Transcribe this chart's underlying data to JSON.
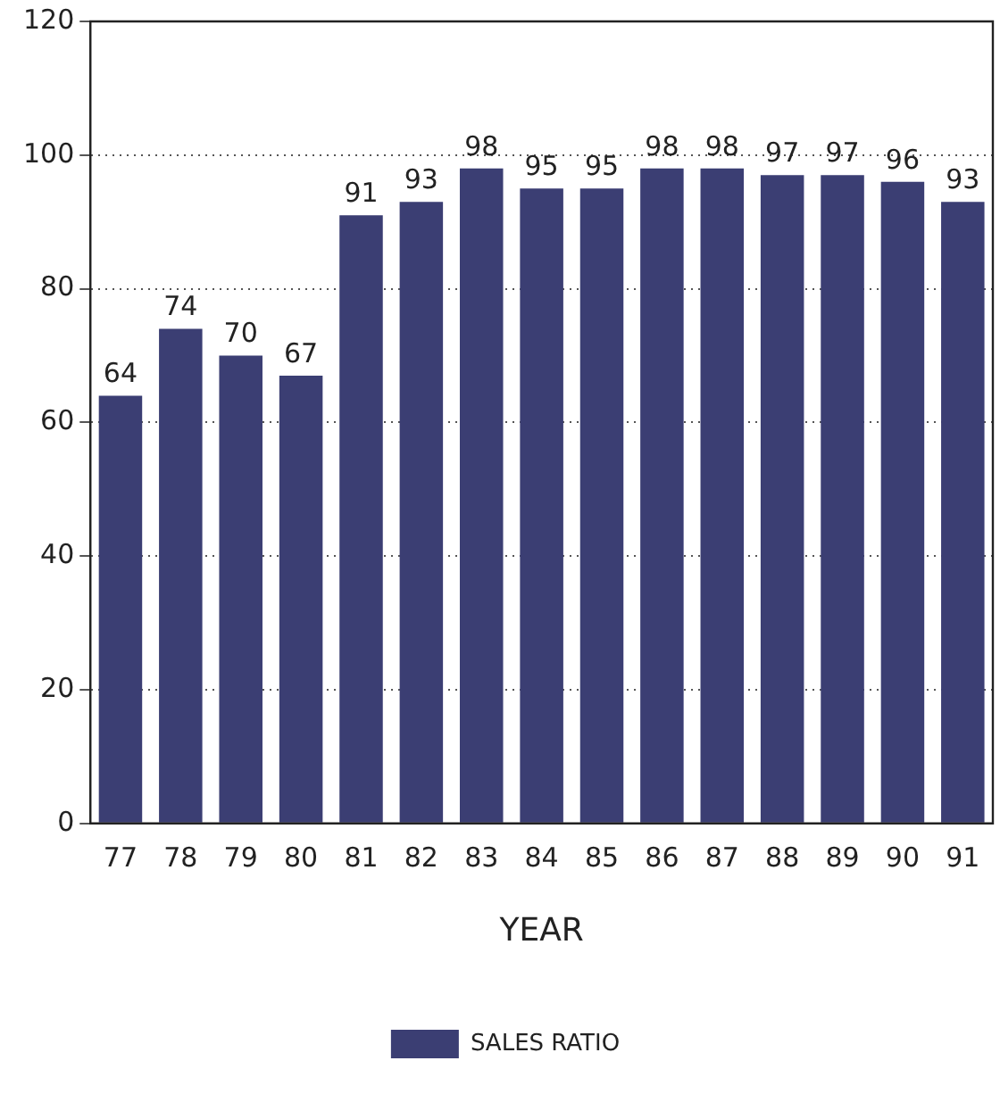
{
  "chart_data": {
    "type": "bar",
    "xlabel": "YEAR",
    "categories": [
      "77",
      "78",
      "79",
      "80",
      "81",
      "82",
      "83",
      "84",
      "85",
      "86",
      "87",
      "88",
      "89",
      "90",
      "91"
    ],
    "series": [
      {
        "name": "SALES RATIO",
        "color": "#3b3e73",
        "values": [
          64,
          74,
          70,
          67,
          91,
          93,
          98,
          95,
          95,
          98,
          98,
          97,
          97,
          96,
          93
        ]
      }
    ],
    "ylim": [
      0,
      120
    ],
    "yticks": [
      0,
      20,
      40,
      60,
      80,
      100,
      120
    ],
    "grid": "y",
    "data_labels": true,
    "legend": "bottom"
  }
}
